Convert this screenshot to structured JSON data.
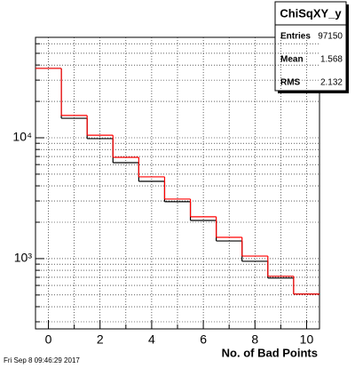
{
  "chart_data": {
    "type": "histogram",
    "xlabel": "No. of Bad Points",
    "footer": "Fri Sep  8 09:46:29 2017",
    "stats": {
      "title": "ChiSqXY_y",
      "rows": [
        [
          "Entries",
          "97150"
        ],
        [
          "Mean",
          "1.568"
        ],
        [
          "RMS",
          "2.132"
        ]
      ]
    },
    "bins": [
      -0.5,
      0.5,
      1.5,
      2.5,
      3.5,
      4.5,
      5.5,
      6.5,
      7.5,
      8.5,
      9.5,
      10.5
    ],
    "series": [
      {
        "color": "#000000",
        "values": [
          37500,
          14500,
          9840,
          6220,
          4360,
          2960,
          2070,
          1400,
          950,
          690,
          508
        ]
      },
      {
        "color": "#ff0000",
        "values": [
          37500,
          15300,
          10500,
          6890,
          4750,
          3110,
          2220,
          1500,
          1050,
          714,
          508
        ]
      }
    ],
    "xlim": [
      -0.5,
      10.5
    ],
    "xticks": [
      0,
      2,
      4,
      6,
      8,
      10
    ],
    "xminorticks": [
      1,
      3,
      5,
      7,
      9
    ],
    "ylim": [
      262,
      67800
    ],
    "log_y": true,
    "yticks": [
      {
        "value": 1000,
        "label": "10³"
      },
      {
        "value": 10000,
        "label": "10⁴"
      }
    ],
    "yminorticks": [
      300,
      400,
      500,
      600,
      700,
      800,
      900,
      2000,
      3000,
      4000,
      5000,
      6000,
      7000,
      8000,
      9000,
      20000,
      30000,
      40000,
      50000,
      60000
    ],
    "grid": true
  }
}
